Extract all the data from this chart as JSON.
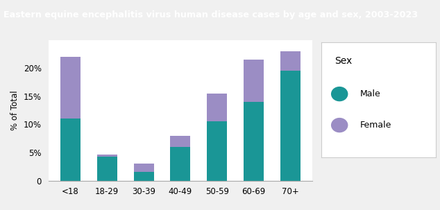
{
  "title": "Eastern equine encephalitis virus human disease cases by age and sex, 2003-2023",
  "categories": [
    "<18",
    "18-29",
    "30-39",
    "40-49",
    "50-59",
    "60-69",
    "70+"
  ],
  "male_values": [
    11.0,
    4.3,
    1.5,
    6.0,
    10.5,
    14.0,
    19.5
  ],
  "female_values": [
    11.0,
    0.3,
    1.5,
    2.0,
    5.0,
    7.5,
    3.5
  ],
  "male_color": "#1a9696",
  "female_color": "#9b8dc4",
  "title_bg_color": "#2e9999",
  "title_text_color": "#ffffff",
  "ylabel": "% of Total",
  "ylim": [
    0,
    25
  ],
  "yticks": [
    0,
    5,
    10,
    15,
    20
  ],
  "ytick_labels": [
    "0",
    "5%",
    "10%",
    "15%",
    "20%"
  ],
  "legend_title": "Sex",
  "legend_labels": [
    "Male",
    "Female"
  ],
  "plot_bg_color": "#ffffff",
  "fig_bg_color": "#f0f0f0"
}
